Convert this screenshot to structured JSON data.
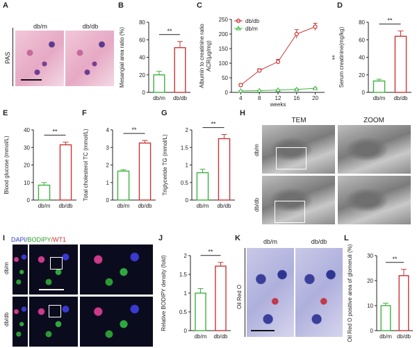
{
  "panels": {
    "A": {
      "letter": "A",
      "side_label": "PAS",
      "col_labels": [
        "db/m",
        "db/db"
      ]
    },
    "B": {
      "letter": "B"
    },
    "C": {
      "letter": "C"
    },
    "D": {
      "letter": "D"
    },
    "E": {
      "letter": "E"
    },
    "F": {
      "letter": "F"
    },
    "G": {
      "letter": "G"
    },
    "H": {
      "letter": "H",
      "col_labels": [
        "TEM",
        "ZOOM"
      ],
      "row_labels": [
        "db/m",
        "db/db"
      ]
    },
    "I": {
      "letter": "I",
      "row_labels": [
        "db/m",
        "db/db"
      ],
      "stain_parts": [
        {
          "text": "DAPI/",
          "color": "#2f3fd0"
        },
        {
          "text": "BODIPY",
          "color": "#2aa02a"
        },
        {
          "text": "/WT1",
          "color": "#d0302f"
        }
      ]
    },
    "J": {
      "letter": "J"
    },
    "K": {
      "letter": "K",
      "side_label": "Oil Red O",
      "col_labels": [
        "db/m",
        "db/db"
      ]
    },
    "L": {
      "letter": "L"
    }
  },
  "colors": {
    "control": "#3cb33c",
    "disease": "#cc3333"
  },
  "chart_data": [
    {
      "id": "B",
      "type": "bar",
      "categories": [
        "db/m",
        "db/db"
      ],
      "values": [
        20,
        51
      ],
      "errors": [
        4,
        7
      ],
      "ylabel": "Mesangial area ratio (%)",
      "ylim": [
        0,
        80
      ],
      "yticks": [
        0,
        20,
        40,
        60,
        80
      ],
      "significance": "**"
    },
    {
      "id": "C",
      "type": "line",
      "x": [
        4,
        8,
        12,
        16,
        20
      ],
      "xticks": [
        4,
        8,
        12,
        16,
        20
      ],
      "xlabel": "weeks",
      "ylabel": "Albumin to creatinine ratio ACR(μg/mg)",
      "ylim": [
        0,
        250
      ],
      "yticks": [
        0,
        50,
        100,
        150,
        200,
        250
      ],
      "series": [
        {
          "name": "db/db",
          "values": [
            25,
            75,
            105,
            200,
            225
          ],
          "errors": [
            4,
            6,
            8,
            15,
            12
          ]
        },
        {
          "name": "db/m",
          "values": [
            5,
            6,
            8,
            10,
            14
          ],
          "errors": [
            1,
            1,
            1,
            2,
            2
          ]
        }
      ],
      "legend": "top-left",
      "significance": "**"
    },
    {
      "id": "D",
      "type": "bar",
      "categories": [
        "db/m",
        "db/db"
      ],
      "values": [
        13,
        64
      ],
      "errors": [
        2,
        6
      ],
      "ylabel": "Serum creatinine(mg/kg)",
      "ylim": [
        0,
        80
      ],
      "yticks": [
        0,
        20,
        40,
        60,
        80
      ],
      "significance": "**"
    },
    {
      "id": "E",
      "type": "bar",
      "categories": [
        "db/m",
        "db/db"
      ],
      "values": [
        8.5,
        31.5
      ],
      "errors": [
        1.5,
        1.5
      ],
      "ylabel": "Blood glucose (mmol/L)",
      "ylim": [
        0,
        40
      ],
      "yticks": [
        0,
        10,
        20,
        30,
        40
      ],
      "significance": "**"
    },
    {
      "id": "F",
      "type": "bar",
      "categories": [
        "db/m",
        "db/db"
      ],
      "values": [
        1.65,
        3.25
      ],
      "errors": [
        0.08,
        0.15
      ],
      "ylabel": "Total cholesterol TC (mmol/L)",
      "ylim": [
        0,
        4
      ],
      "yticks": [
        0,
        1,
        2,
        3,
        4
      ],
      "significance": "**"
    },
    {
      "id": "G",
      "type": "bar",
      "categories": [
        "db/m",
        "db/db"
      ],
      "values": [
        0.78,
        1.75
      ],
      "errors": [
        0.1,
        0.12
      ],
      "ylabel": "Triglyceride TG (mmol/L)",
      "ylim": [
        0,
        2.0
      ],
      "yticks": [
        0,
        0.5,
        1.0,
        1.5,
        2.0
      ],
      "significance": "**"
    },
    {
      "id": "J",
      "type": "bar",
      "categories": [
        "db/m",
        "db/db"
      ],
      "values": [
        1.0,
        1.72
      ],
      "errors": [
        0.12,
        0.1
      ],
      "ylabel": "Relative BODIPY density (fold)",
      "ylim": [
        0,
        2.0
      ],
      "yticks": [
        0,
        0.5,
        1.0,
        1.5,
        2.0
      ],
      "significance": "**"
    },
    {
      "id": "L",
      "type": "bar",
      "categories": [
        "db/m",
        "db/db"
      ],
      "values": [
        10,
        22
      ],
      "errors": [
        1,
        2.5
      ],
      "ylabel": "Oil Red O positive area of glomeruli (%)",
      "ylim": [
        0,
        30
      ],
      "yticks": [
        0,
        10,
        20,
        30
      ],
      "significance": "**"
    }
  ]
}
